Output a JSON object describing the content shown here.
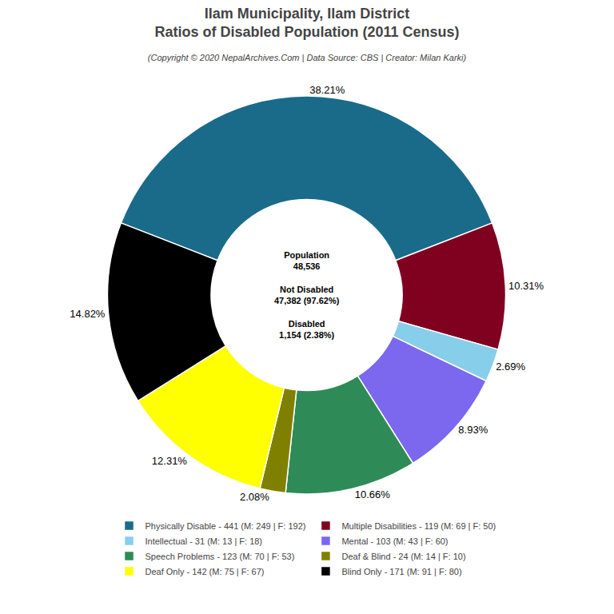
{
  "chart_data": {
    "type": "pie",
    "title": "Ilam Municipality, Ilam District\nRatios of Disabled Population (2011 Census)",
    "subtitle": "(Copyright © 2020 NepalArchives.Com | Data Source: CBS | Creator: Milan Karki)",
    "categories": [
      "Physically Disable - 441 (M: 249 | F: 192)",
      "Multiple Disabilities - 119 (M: 69 | F: 50)",
      "Intellectual - 31 (M: 13 | F: 18)",
      "Mental - 103 (M: 43 | F: 60)",
      "Speech Problems - 123 (M: 70 | F: 53)",
      "Deaf & Blind - 24 (M: 14 | F: 10)",
      "Deaf Only - 142 (M: 75 | F: 67)",
      "Blind Only - 171 (M: 91 | F: 80)"
    ],
    "values": [
      38.21,
      10.31,
      2.69,
      8.93,
      10.66,
      2.08,
      12.31,
      14.82
    ],
    "value_labels": [
      "38.21%",
      "10.31%",
      "2.69%",
      "8.93%",
      "10.66%",
      "2.08%",
      "12.31%",
      "14.82%"
    ],
    "colors": [
      "#1a6b8a",
      "#800020",
      "#87ceeb",
      "#7b68ee",
      "#2e8b57",
      "#808000",
      "#ffff00",
      "#000000"
    ],
    "data_labels": true,
    "annotations": [
      "Population\n48,536\n\nNot Disabled\n47,382 (97.62%)\n\nDisabled\n1,154 (2.38%)"
    ],
    "legend": "bottom"
  }
}
